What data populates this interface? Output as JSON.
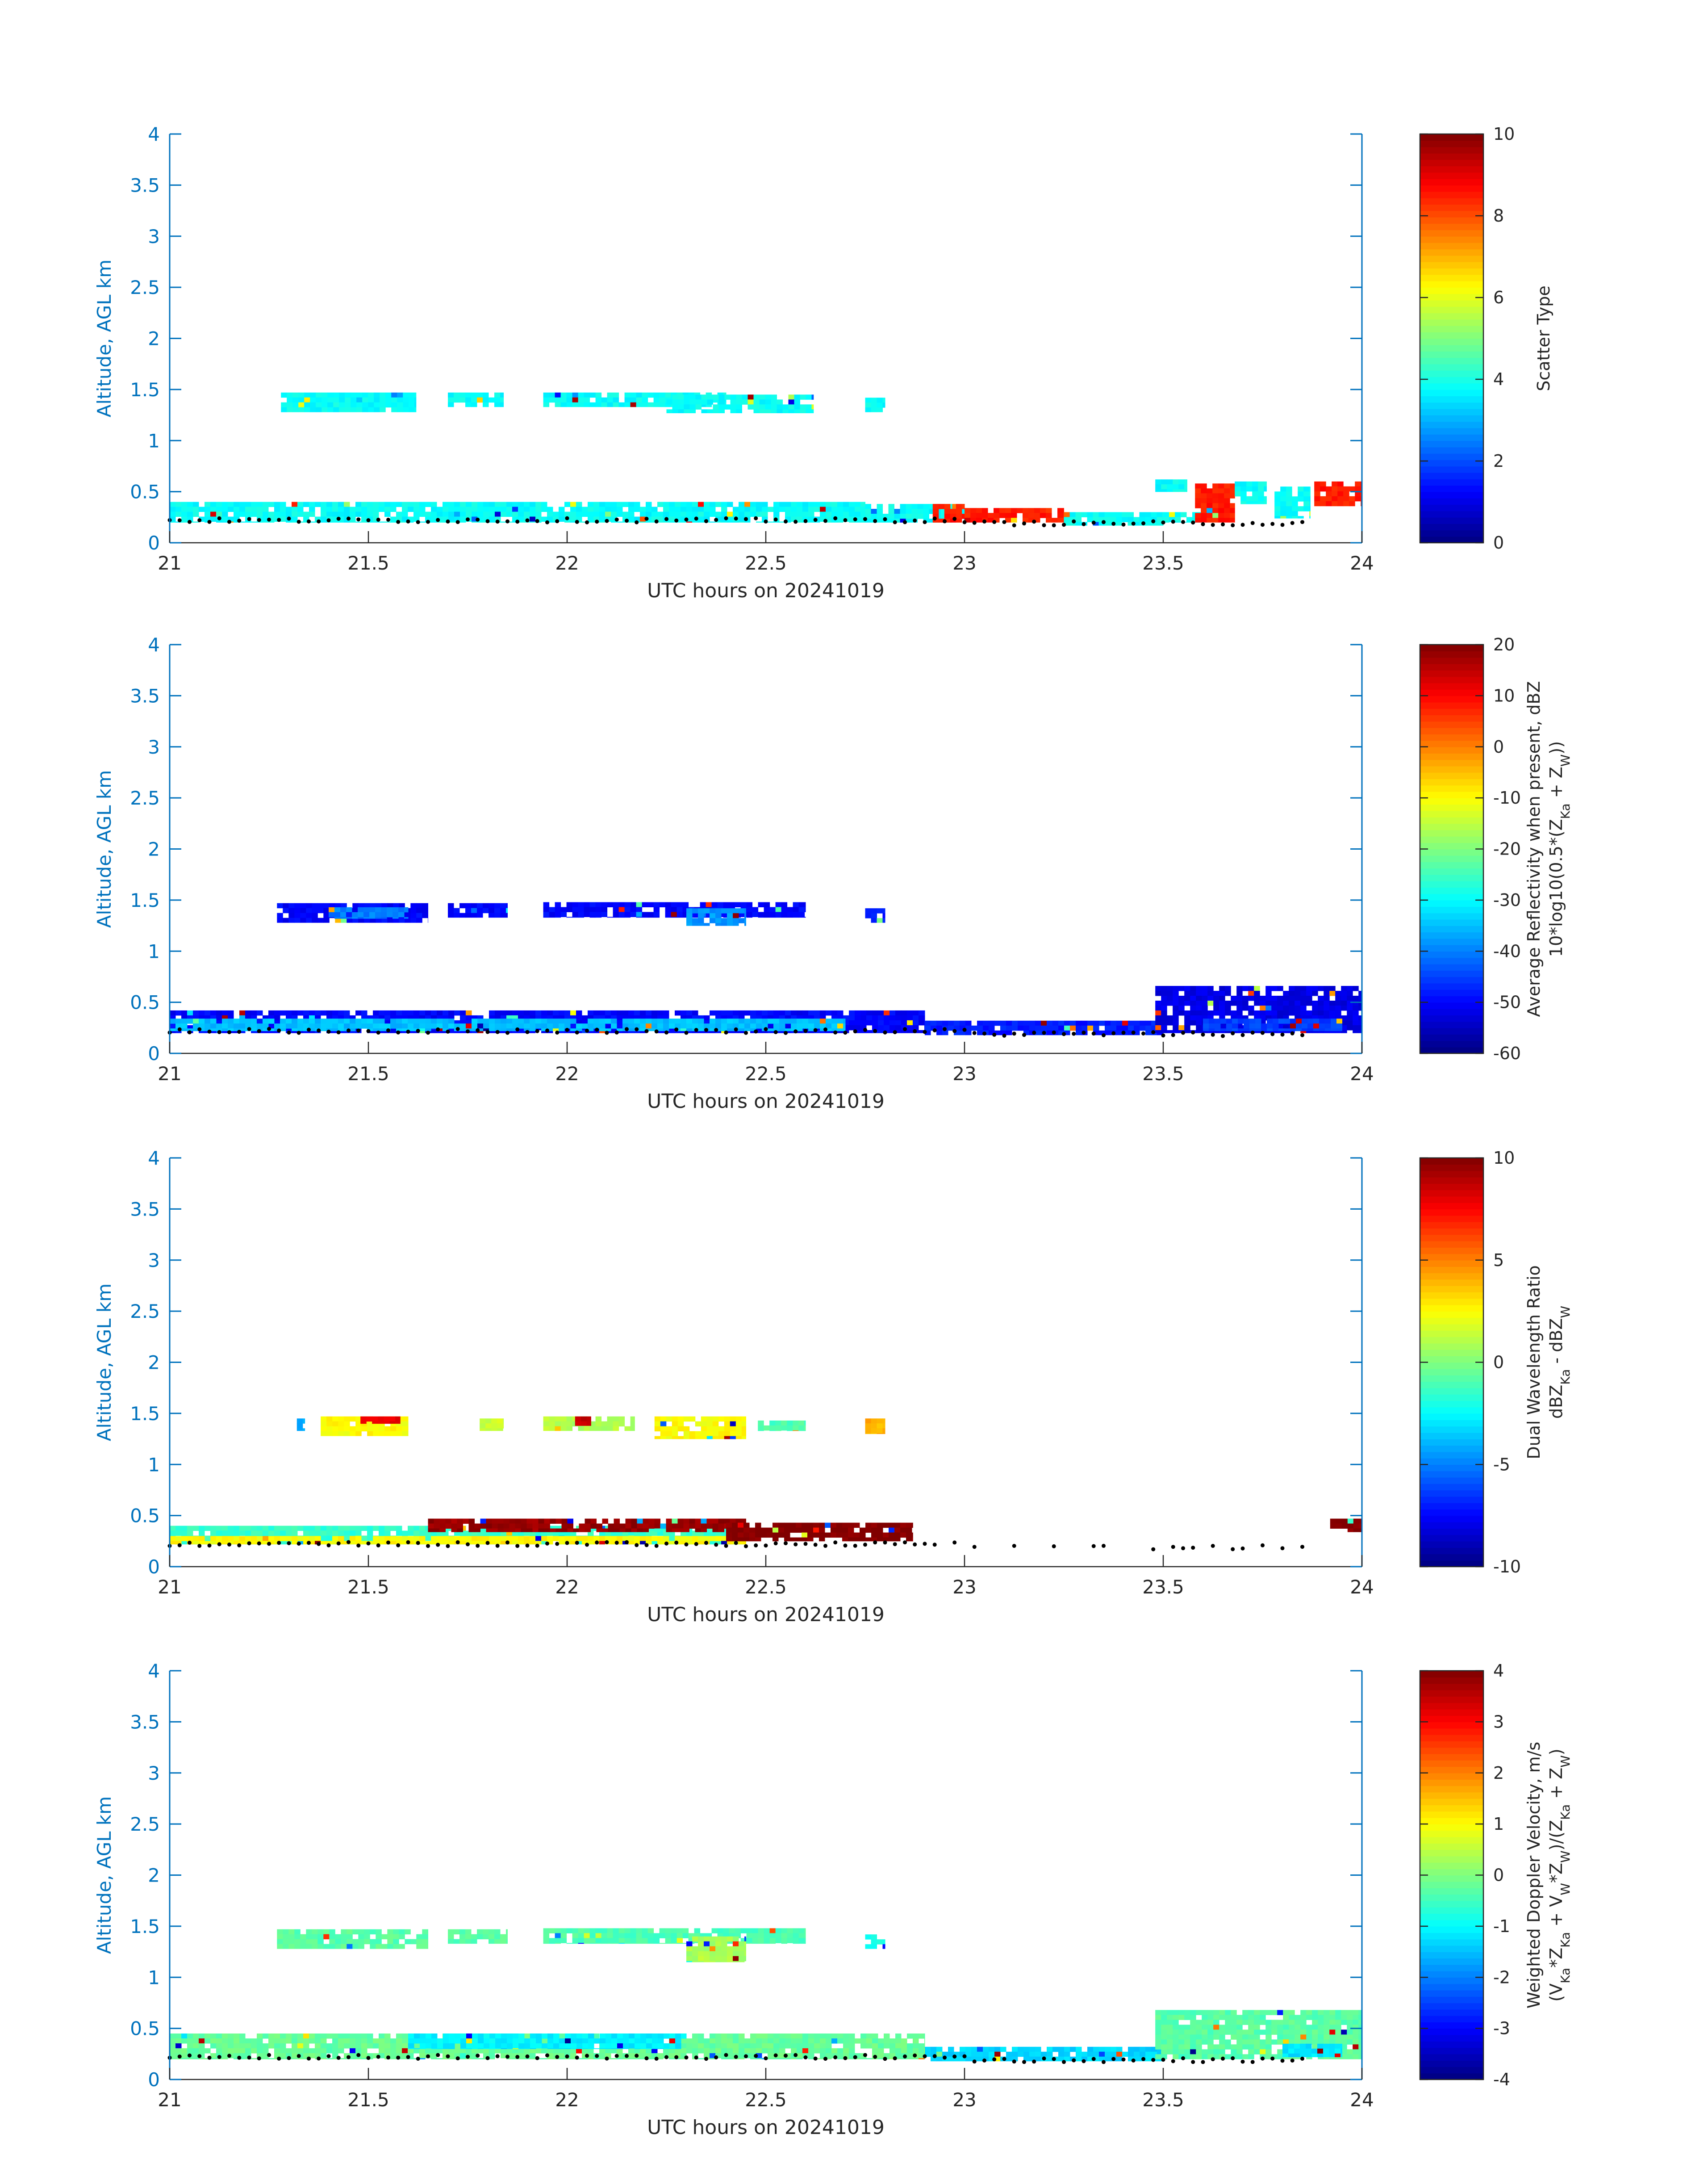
{
  "figure": {
    "xlabel": "UTC hours on 20241019",
    "ylabel": "Altitude, AGL km"
  },
  "chart_data": [
    {
      "type": "heatmap",
      "name": "scatter-type",
      "xlabel": "UTC hours on 20241019",
      "ylabel": "Altitude, AGL km",
      "xlim": [
        21,
        24
      ],
      "ylim": [
        0,
        4
      ],
      "xticks": [
        "21",
        "21.5",
        "22",
        "22.5",
        "23",
        "23.5",
        "24"
      ],
      "yticks": [
        "0",
        "0.5",
        "1",
        "1.5",
        "2",
        "2.5",
        "3",
        "3.5",
        "4"
      ],
      "colorbar": {
        "label": "Scatter Type",
        "label2": "",
        "clim": [
          0,
          10
        ],
        "ticks": [
          "0",
          "2",
          "4",
          "6",
          "8",
          "10"
        ],
        "colormap": "jet"
      },
      "regions": [
        {
          "x0": 21.28,
          "x1": 21.62,
          "y0": 1.28,
          "y1": 1.47,
          "value": 3.8
        },
        {
          "x0": 21.7,
          "x1": 21.84,
          "y0": 1.33,
          "y1": 1.47,
          "value": 3.8
        },
        {
          "x0": 21.94,
          "x1": 22.4,
          "y0": 1.33,
          "y1": 1.47,
          "value": 3.8
        },
        {
          "x0": 22.25,
          "x1": 22.62,
          "y0": 1.27,
          "y1": 1.45,
          "value": 3.8
        },
        {
          "x0": 22.75,
          "x1": 22.8,
          "y0": 1.28,
          "y1": 1.42,
          "value": 3.8
        },
        {
          "x0": 21.0,
          "x1": 22.75,
          "y0": 0.2,
          "y1": 0.4,
          "value": 3.8
        },
        {
          "x0": 22.75,
          "x1": 23.0,
          "y0": 0.2,
          "y1": 0.38,
          "value": 3.8
        },
        {
          "x0": 22.92,
          "x1": 23.0,
          "y0": 0.2,
          "y1": 0.38,
          "value": 8.5
        },
        {
          "x0": 23.0,
          "x1": 23.25,
          "y0": 0.2,
          "y1": 0.34,
          "value": 8.5
        },
        {
          "x0": 23.25,
          "x1": 23.5,
          "y0": 0.17,
          "y1": 0.3,
          "value": 3.8
        },
        {
          "x0": 23.5,
          "x1": 23.6,
          "y0": 0.2,
          "y1": 0.3,
          "value": 3.8
        },
        {
          "x0": 23.48,
          "x1": 23.56,
          "y0": 0.5,
          "y1": 0.62,
          "value": 3.8
        },
        {
          "x0": 23.58,
          "x1": 23.68,
          "y0": 0.2,
          "y1": 0.58,
          "value": 8.5
        },
        {
          "x0": 23.68,
          "x1": 23.76,
          "y0": 0.38,
          "y1": 0.6,
          "value": 3.8
        },
        {
          "x0": 23.78,
          "x1": 23.87,
          "y0": 0.24,
          "y1": 0.55,
          "value": 3.8
        },
        {
          "x0": 23.88,
          "x1": 24.0,
          "y0": 0.36,
          "y1": 0.6,
          "value": 8.5
        }
      ],
      "dots": {
        "x0": 21.0,
        "x1": 23.85,
        "ybase": 0.22
      }
    },
    {
      "type": "heatmap",
      "name": "reflectivity",
      "xlabel": "UTC hours on 20241019",
      "ylabel": "Altitude, AGL km",
      "xlim": [
        21,
        24
      ],
      "ylim": [
        0,
        4
      ],
      "xticks": [
        "21",
        "21.5",
        "22",
        "22.5",
        "23",
        "23.5",
        "24"
      ],
      "yticks": [
        "0",
        "0.5",
        "1",
        "1.5",
        "2",
        "2.5",
        "3",
        "3.5",
        "4"
      ],
      "colorbar": {
        "label": "Average Reflectivity when present, dBZ",
        "label2": "10*log10(0.5*(Z_Ka + Z_W))",
        "clim": [
          -60,
          20
        ],
        "ticks": [
          "-60",
          "-50",
          "-40",
          "-30",
          "-20",
          "-10",
          "0",
          "10",
          "20"
        ],
        "colormap": "jet"
      },
      "regions": [
        {
          "x0": 21.27,
          "x1": 21.65,
          "y0": 1.28,
          "y1": 1.47,
          "value": -50
        },
        {
          "x0": 21.4,
          "x1": 21.6,
          "y0": 1.32,
          "y1": 1.43,
          "value": -40
        },
        {
          "x0": 21.7,
          "x1": 21.85,
          "y0": 1.33,
          "y1": 1.47,
          "value": -50
        },
        {
          "x0": 21.94,
          "x1": 22.6,
          "y0": 1.33,
          "y1": 1.48,
          "value": -50
        },
        {
          "x0": 22.3,
          "x1": 22.45,
          "y0": 1.25,
          "y1": 1.42,
          "value": -38
        },
        {
          "x0": 22.75,
          "x1": 22.8,
          "y0": 1.28,
          "y1": 1.42,
          "value": -48
        },
        {
          "x0": 21.0,
          "x1": 22.9,
          "y0": 0.2,
          "y1": 0.42,
          "value": -50
        },
        {
          "x0": 21.0,
          "x1": 22.7,
          "y0": 0.22,
          "y1": 0.34,
          "value": -35
        },
        {
          "x0": 22.9,
          "x1": 23.5,
          "y0": 0.18,
          "y1": 0.32,
          "value": -48
        },
        {
          "x0": 23.48,
          "x1": 24.0,
          "y0": 0.2,
          "y1": 0.66,
          "value": -52
        },
        {
          "x0": 23.6,
          "x1": 23.95,
          "y0": 0.22,
          "y1": 0.34,
          "value": -45
        }
      ],
      "dots": {
        "x0": 21.0,
        "x1": 23.85,
        "ybase": 0.22
      }
    },
    {
      "type": "heatmap",
      "name": "dual-wavelength-ratio",
      "xlabel": "UTC hours on 20241019",
      "ylabel": "Altitude, AGL km",
      "xlim": [
        21,
        24
      ],
      "ylim": [
        0,
        4
      ],
      "xticks": [
        "21",
        "21.5",
        "22",
        "22.5",
        "23",
        "23.5",
        "24"
      ],
      "yticks": [
        "0",
        "0.5",
        "1",
        "1.5",
        "2",
        "2.5",
        "3",
        "3.5",
        "4"
      ],
      "colorbar": {
        "label": "Dual Wavelength Ratio",
        "label2": "dBZ_Ka - dBZ_W",
        "clim": [
          -10,
          10
        ],
        "ticks": [
          "-10",
          "-5",
          "0",
          "5",
          "10"
        ],
        "colormap": "jet"
      },
      "regions": [
        {
          "x0": 21.32,
          "x1": 21.34,
          "y0": 1.33,
          "y1": 1.45,
          "value": -4
        },
        {
          "x0": 21.38,
          "x1": 21.6,
          "y0": 1.28,
          "y1": 1.47,
          "value": 2.5
        },
        {
          "x0": 21.48,
          "x1": 21.58,
          "y0": 1.4,
          "y1": 1.47,
          "value": 8
        },
        {
          "x0": 21.78,
          "x1": 21.84,
          "y0": 1.33,
          "y1": 1.45,
          "value": 1.5
        },
        {
          "x0": 21.94,
          "x1": 22.17,
          "y0": 1.33,
          "y1": 1.47,
          "value": 1
        },
        {
          "x0": 22.02,
          "x1": 22.06,
          "y0": 1.38,
          "y1": 1.47,
          "value": 8.5
        },
        {
          "x0": 22.22,
          "x1": 22.45,
          "y0": 1.25,
          "y1": 1.47,
          "value": 2.5
        },
        {
          "x0": 22.48,
          "x1": 22.6,
          "y0": 1.33,
          "y1": 1.43,
          "value": -1
        },
        {
          "x0": 22.75,
          "x1": 22.8,
          "y0": 1.3,
          "y1": 1.45,
          "value": 4
        },
        {
          "x0": 21.0,
          "x1": 22.45,
          "y0": 0.22,
          "y1": 0.4,
          "value": -1.5
        },
        {
          "x0": 21.0,
          "x1": 22.45,
          "y0": 0.22,
          "y1": 0.3,
          "value": 2.5
        },
        {
          "x0": 21.65,
          "x1": 22.45,
          "y0": 0.34,
          "y1": 0.47,
          "value": 9.5
        },
        {
          "x0": 22.4,
          "x1": 22.87,
          "y0": 0.25,
          "y1": 0.43,
          "value": 10
        },
        {
          "x0": 23.92,
          "x1": 24.0,
          "y0": 0.34,
          "y1": 0.47,
          "value": 10
        }
      ],
      "dots": {
        "x0": 21.0,
        "x1": 23.85,
        "ybase": 0.22
      }
    },
    {
      "type": "heatmap",
      "name": "doppler-velocity",
      "xlabel": "UTC hours on 20241019",
      "ylabel": "Altitude, AGL km",
      "xlim": [
        21,
        24
      ],
      "ylim": [
        0,
        4
      ],
      "xticks": [
        "21",
        "21.5",
        "22",
        "22.5",
        "23",
        "23.5",
        "24"
      ],
      "yticks": [
        "0",
        "0.5",
        "1",
        "1.5",
        "2",
        "2.5",
        "3",
        "3.5",
        "4"
      ],
      "colorbar": {
        "label": "Weighted Doppler Velocity, m/s",
        "label2": "(V_Ka*Z_Ka + V_W*Z_W)/(Z_Ka + Z_W)",
        "clim": [
          -4,
          4
        ],
        "ticks": [
          "-4",
          "-3",
          "-2",
          "-1",
          "0",
          "1",
          "2",
          "3",
          "4"
        ],
        "colormap": "jet"
      },
      "regions": [
        {
          "x0": 21.27,
          "x1": 21.65,
          "y0": 1.28,
          "y1": 1.47,
          "value": -0.3
        },
        {
          "x0": 21.7,
          "x1": 21.85,
          "y0": 1.33,
          "y1": 1.47,
          "value": -0.3
        },
        {
          "x0": 21.94,
          "x1": 22.6,
          "y0": 1.33,
          "y1": 1.48,
          "value": -0.4
        },
        {
          "x0": 22.3,
          "x1": 22.45,
          "y0": 1.15,
          "y1": 1.4,
          "value": 0.3
        },
        {
          "x0": 22.75,
          "x1": 22.8,
          "y0": 1.28,
          "y1": 1.42,
          "value": -0.8
        },
        {
          "x0": 21.0,
          "x1": 22.9,
          "y0": 0.2,
          "y1": 0.45,
          "value": -0.2
        },
        {
          "x0": 21.6,
          "x1": 22.3,
          "y0": 0.3,
          "y1": 0.45,
          "value": -1.1
        },
        {
          "x0": 22.9,
          "x1": 23.5,
          "y0": 0.18,
          "y1": 0.32,
          "value": -1.3
        },
        {
          "x0": 23.48,
          "x1": 24.0,
          "y0": 0.2,
          "y1": 0.68,
          "value": -0.3
        },
        {
          "x0": 23.8,
          "x1": 23.95,
          "y0": 0.22,
          "y1": 0.35,
          "value": -1.2
        }
      ],
      "dots": {
        "x0": 21.0,
        "x1": 23.85,
        "ybase": 0.22
      }
    }
  ]
}
